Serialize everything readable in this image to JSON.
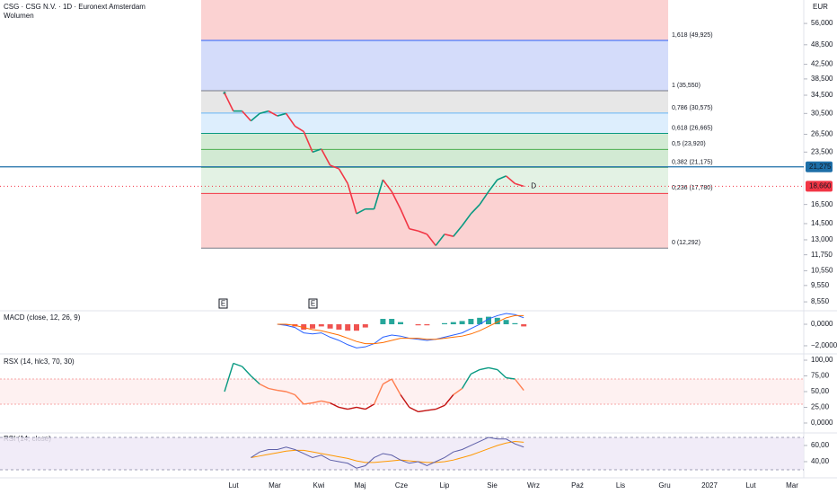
{
  "header": {
    "title": "CSG · CSG N.V. · 1D · Euronext Amsterdam",
    "volume": "Wolumen",
    "currency": "EUR"
  },
  "time_axis": [
    "Lut",
    "Mar",
    "Kwi",
    "Maj",
    "Cze",
    "Lip",
    "Sie",
    "Wrz",
    "Paź",
    "Lis",
    "Gru",
    "2027",
    "Lut",
    "Mar"
  ],
  "earnings_markers": [
    "E",
    "E"
  ],
  "chart_data": [
    {
      "type": "candle-line",
      "log": true,
      "ylim": [
        8.1,
        65.6
      ],
      "yticks": [
        {
          "value": 56,
          "label": "56,000"
        },
        {
          "value": 48.5,
          "label": "48,500"
        },
        {
          "value": 42.5,
          "label": "42,500"
        },
        {
          "value": 38.5,
          "label": "38,500"
        },
        {
          "value": 34.5,
          "label": "34,500"
        },
        {
          "value": 30.5,
          "label": "30,500"
        },
        {
          "value": 26.5,
          "label": "26,500"
        },
        {
          "value": 23.5,
          "label": "23,500"
        },
        {
          "value": 16.5,
          "label": "16,500"
        },
        {
          "value": 14.5,
          "label": "14,500"
        },
        {
          "value": 13,
          "label": "13,000"
        },
        {
          "value": 11.75,
          "label": "11,750"
        },
        {
          "value": 10.55,
          "label": "10,550"
        },
        {
          "value": 9.55,
          "label": "9,550"
        },
        {
          "value": 8.55,
          "label": "8,550"
        }
      ],
      "values": [
        35,
        31,
        31,
        29,
        30.5,
        31,
        30,
        30.5,
        28,
        27,
        23.5,
        24,
        21.5,
        21,
        19,
        15.5,
        16,
        16,
        19.5,
        18,
        16,
        14,
        13.8,
        13.5,
        12.5,
        13.5,
        13.3,
        14.3,
        15.5,
        16.5,
        18,
        19.5,
        20,
        19,
        18.66
      ],
      "up_color": "#089981",
      "down_color": "#f23645",
      "fib": [
        {
          "value": 12.292,
          "label": "0 (12,292)",
          "color": "#787b86",
          "fill": "#f7a5a5"
        },
        {
          "value": 17.78,
          "label": "0,236 (17,780)",
          "color": "#f23645",
          "fill": "#c8e6c9"
        },
        {
          "value": 21.175,
          "label": "0,382 (21,175)",
          "color": "#81c784",
          "fill": "#a5d6a7"
        },
        {
          "value": 23.92,
          "label": "0,5 (23,920)",
          "color": "#4caf50",
          "fill": "#a5d6a7"
        },
        {
          "value": 26.665,
          "label": "0,618 (26,665)",
          "color": "#089981",
          "fill": "#bbdefb"
        },
        {
          "value": 30.575,
          "label": "0,786 (30,575)",
          "color": "#64b5f6",
          "fill": "#cfcfcf"
        },
        {
          "value": 35.55,
          "label": "1 (35,550)",
          "color": "#787b86",
          "fill": "#a9b9f5"
        },
        {
          "value": 49.925,
          "label": "1,618 (49,925)",
          "color": "#2962ff",
          "fill": "#f7a5a5"
        }
      ],
      "hline": {
        "value": 21.275,
        "label": "21,275",
        "color": "#1e6fa8"
      },
      "last": {
        "value": 18.66,
        "label": "18,660",
        "color": "#f23645"
      },
      "marker": "D"
    },
    {
      "type": "macd",
      "title": "MACD (close, 12, 26, 9)",
      "ylim": [
        -2.67,
        1.17
      ],
      "yticks": [
        {
          "value": 0,
          "label": "0,0000"
        },
        {
          "value": -2,
          "label": "−2,0000"
        }
      ],
      "macd": [
        null,
        null,
        null,
        null,
        null,
        null,
        0,
        -0.1,
        -0.3,
        -0.8,
        -0.9,
        -0.8,
        -1.2,
        -1.5,
        -1.9,
        -2.2,
        -2.1,
        -1.8,
        -1.2,
        -1,
        -1.1,
        -1.3,
        -1.4,
        -1.5,
        -1.4,
        -1.2,
        -1,
        -0.8,
        -0.4,
        0,
        0.5,
        0.8,
        1,
        0.9,
        0.6
      ],
      "signal": [
        null,
        null,
        null,
        null,
        null,
        null,
        0,
        0,
        -0.1,
        -0.3,
        -0.5,
        -0.6,
        -0.8,
        -1,
        -1.3,
        -1.6,
        -1.8,
        -1.8,
        -1.7,
        -1.5,
        -1.3,
        -1.3,
        -1.3,
        -1.4,
        -1.4,
        -1.3,
        -1.2,
        -1.1,
        -0.9,
        -0.6,
        -0.2,
        0.2,
        0.6,
        0.8,
        0.8
      ],
      "histogram": [
        null,
        null,
        null,
        null,
        null,
        null,
        0,
        -0.1,
        -0.2,
        -0.5,
        -0.4,
        -0.2,
        -0.4,
        -0.5,
        -0.6,
        -0.6,
        -0.3,
        0,
        0.5,
        0.5,
        0.2,
        0,
        -0.1,
        -0.1,
        0,
        0.1,
        0.2,
        0.3,
        0.5,
        0.6,
        0.7,
        0.6,
        0.4,
        0.1,
        -0.2
      ],
      "macd_color": "#2962ff",
      "signal_color": "#ff6d00",
      "pos_color": "#26a69a",
      "neg_color": "#ef5350"
    },
    {
      "type": "rsx",
      "title": "RSX (14, hlc3, 70, 30)",
      "ylim": [
        -12.9,
        108.6
      ],
      "yticks": [
        {
          "value": 100,
          "label": "100,00"
        },
        {
          "value": 75,
          "label": "75,00"
        },
        {
          "value": 50,
          "label": "50,00"
        },
        {
          "value": 25,
          "label": "25,00"
        },
        {
          "value": 0,
          "label": "0,0000"
        }
      ],
      "band": [
        30,
        70
      ],
      "values": [
        50,
        95,
        90,
        75,
        62,
        55,
        52,
        50,
        45,
        30,
        32,
        35,
        32,
        25,
        22,
        25,
        22,
        30,
        62,
        70,
        45,
        25,
        18,
        20,
        22,
        28,
        45,
        55,
        78,
        85,
        88,
        85,
        72,
        70,
        52
      ],
      "color": "#ff7f50",
      "high_color": "#089981",
      "low_color": "#c2100f"
    },
    {
      "type": "rsi",
      "title": "RSI (14, close)",
      "ylim": [
        20,
        74.4
      ],
      "yticks": [
        {
          "value": 60,
          "label": "60,00"
        },
        {
          "value": 40,
          "label": "40,00"
        }
      ],
      "band": [
        30,
        70
      ],
      "values": [
        null,
        null,
        null,
        45,
        52,
        55,
        55,
        58,
        55,
        50,
        45,
        48,
        42,
        40,
        38,
        32,
        35,
        45,
        50,
        48,
        42,
        38,
        40,
        35,
        40,
        45,
        52,
        55,
        60,
        65,
        70,
        68,
        68,
        62,
        58
      ],
      "ma": [
        null,
        null,
        null,
        45,
        47,
        49,
        51,
        53,
        54,
        54,
        52,
        50,
        48,
        46,
        44,
        41,
        39,
        39,
        40,
        41,
        42,
        41,
        40,
        39,
        39,
        40,
        42,
        45,
        48,
        52,
        56,
        60,
        63,
        65,
        64
      ],
      "color": "#5d5fa8",
      "ma_color": "#ff9800"
    }
  ]
}
